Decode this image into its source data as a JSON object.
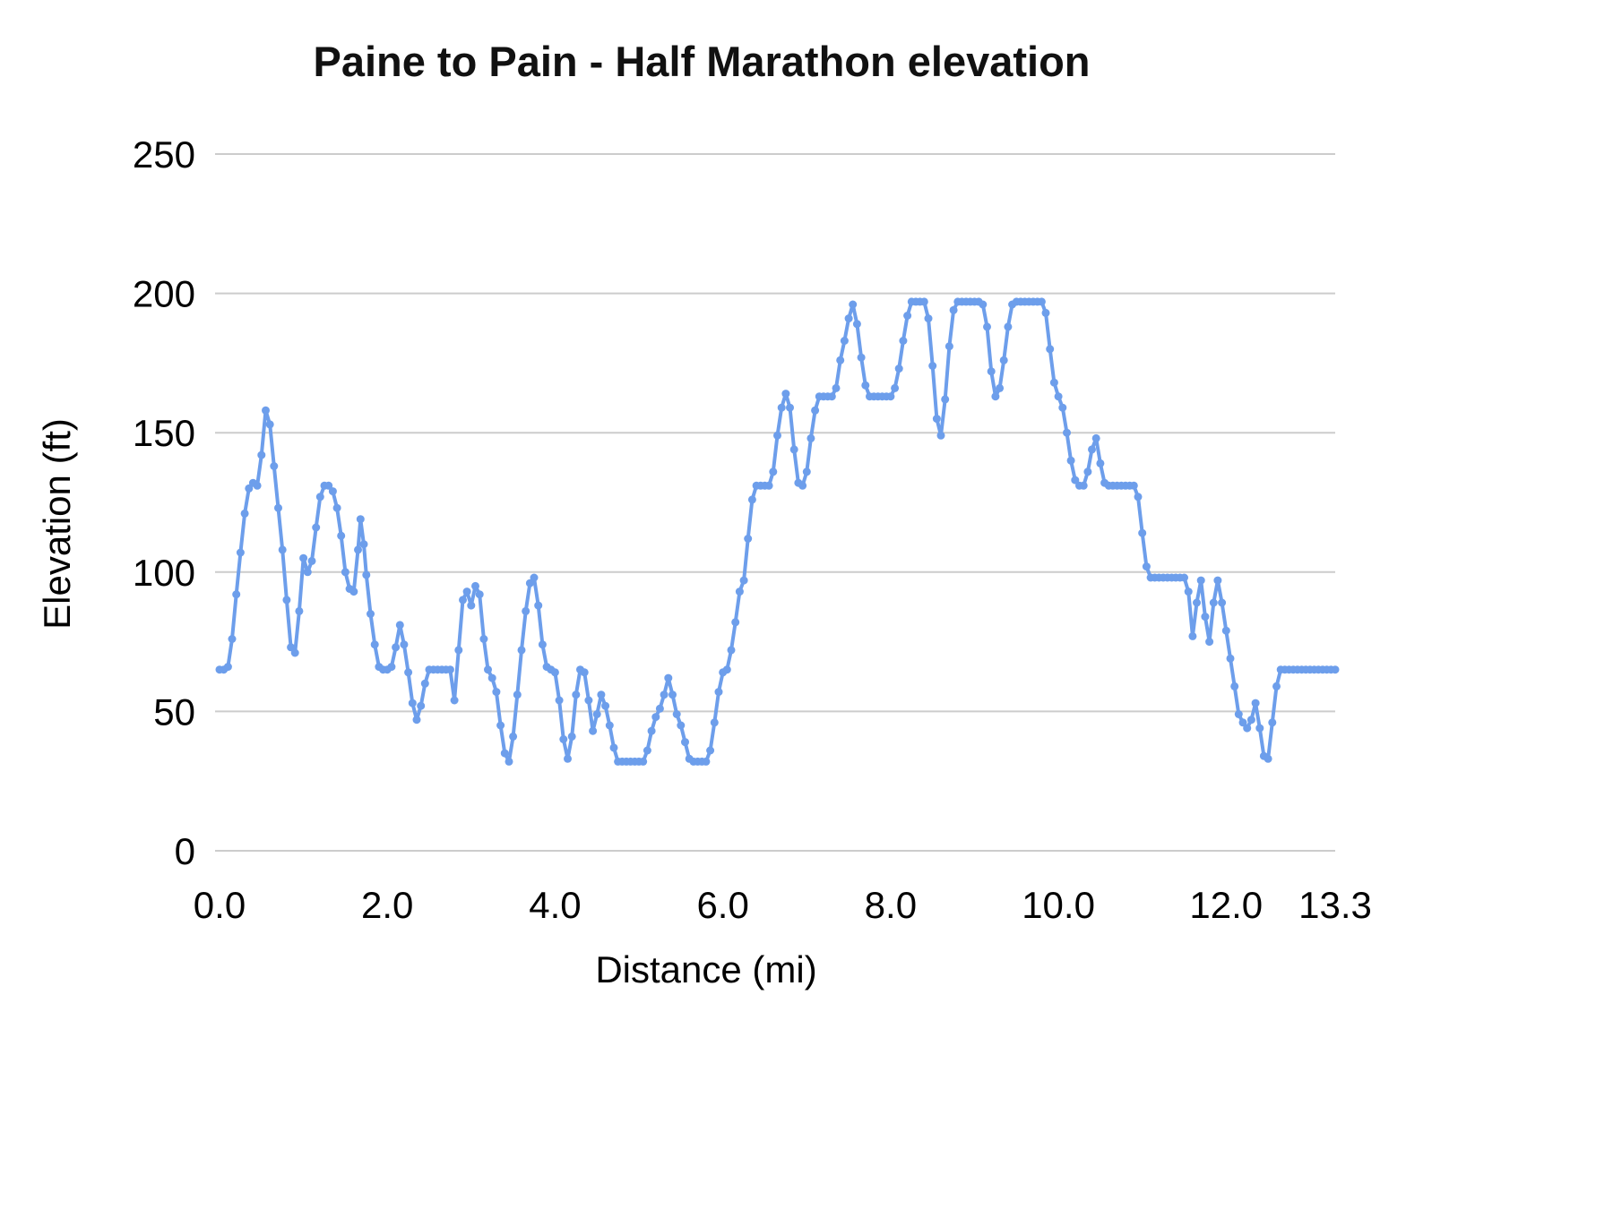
{
  "chart_data": {
    "type": "line",
    "title": "Paine to Pain - Half Marathon elevation",
    "xlabel": "Distance (mi)",
    "ylabel": "Elevation (ft)",
    "xlim": [
      0,
      13.3
    ],
    "ylim": [
      0,
      250
    ],
    "x_ticks": [
      {
        "value": 0.0,
        "label": "0.0"
      },
      {
        "value": 2.0,
        "label": "2.0"
      },
      {
        "value": 4.0,
        "label": "4.0"
      },
      {
        "value": 6.0,
        "label": "6.0"
      },
      {
        "value": 8.0,
        "label": "8.0"
      },
      {
        "value": 10.0,
        "label": "10.0"
      },
      {
        "value": 12.0,
        "label": "12.0"
      },
      {
        "value": 13.3,
        "label": "13.3"
      }
    ],
    "y_ticks": [
      {
        "value": 0,
        "label": "0"
      },
      {
        "value": 50,
        "label": "50"
      },
      {
        "value": 100,
        "label": "100"
      },
      {
        "value": 150,
        "label": "150"
      },
      {
        "value": 200,
        "label": "200"
      },
      {
        "value": 250,
        "label": "250"
      }
    ],
    "grid": "horizontal",
    "grid_color": "#cccccc",
    "legend": "none",
    "line_color": "#6d9eeb",
    "marker": "circle",
    "series": [
      {
        "name": "Elevation",
        "points": [
          [
            0.0,
            65
          ],
          [
            0.05,
            65
          ],
          [
            0.1,
            66
          ],
          [
            0.15,
            76
          ],
          [
            0.2,
            92
          ],
          [
            0.25,
            107
          ],
          [
            0.3,
            121
          ],
          [
            0.35,
            130
          ],
          [
            0.4,
            132
          ],
          [
            0.45,
            131
          ],
          [
            0.5,
            142
          ],
          [
            0.55,
            158
          ],
          [
            0.6,
            153
          ],
          [
            0.65,
            138
          ],
          [
            0.7,
            123
          ],
          [
            0.75,
            108
          ],
          [
            0.8,
            90
          ],
          [
            0.85,
            73
          ],
          [
            0.9,
            71
          ],
          [
            0.95,
            86
          ],
          [
            1.0,
            105
          ],
          [
            1.05,
            100
          ],
          [
            1.1,
            104
          ],
          [
            1.15,
            116
          ],
          [
            1.2,
            127
          ],
          [
            1.25,
            131
          ],
          [
            1.3,
            131
          ],
          [
            1.35,
            129
          ],
          [
            1.4,
            123
          ],
          [
            1.45,
            113
          ],
          [
            1.5,
            100
          ],
          [
            1.55,
            94
          ],
          [
            1.6,
            93
          ],
          [
            1.65,
            108
          ],
          [
            1.68,
            119
          ],
          [
            1.72,
            110
          ],
          [
            1.75,
            99
          ],
          [
            1.8,
            85
          ],
          [
            1.85,
            74
          ],
          [
            1.9,
            66
          ],
          [
            1.95,
            65
          ],
          [
            2.0,
            65
          ],
          [
            2.05,
            66
          ],
          [
            2.1,
            73
          ],
          [
            2.15,
            81
          ],
          [
            2.2,
            74
          ],
          [
            2.25,
            64
          ],
          [
            2.3,
            53
          ],
          [
            2.35,
            47
          ],
          [
            2.4,
            52
          ],
          [
            2.45,
            60
          ],
          [
            2.5,
            65
          ],
          [
            2.55,
            65
          ],
          [
            2.6,
            65
          ],
          [
            2.65,
            65
          ],
          [
            2.7,
            65
          ],
          [
            2.75,
            65
          ],
          [
            2.8,
            54
          ],
          [
            2.85,
            72
          ],
          [
            2.9,
            90
          ],
          [
            2.95,
            93
          ],
          [
            3.0,
            88
          ],
          [
            3.05,
            95
          ],
          [
            3.1,
            92
          ],
          [
            3.15,
            76
          ],
          [
            3.2,
            65
          ],
          [
            3.25,
            62
          ],
          [
            3.3,
            57
          ],
          [
            3.35,
            45
          ],
          [
            3.4,
            35
          ],
          [
            3.45,
            32
          ],
          [
            3.5,
            41
          ],
          [
            3.55,
            56
          ],
          [
            3.6,
            72
          ],
          [
            3.65,
            86
          ],
          [
            3.7,
            96
          ],
          [
            3.75,
            98
          ],
          [
            3.8,
            88
          ],
          [
            3.85,
            74
          ],
          [
            3.9,
            66
          ],
          [
            3.95,
            65
          ],
          [
            4.0,
            64
          ],
          [
            4.05,
            54
          ],
          [
            4.1,
            40
          ],
          [
            4.15,
            33
          ],
          [
            4.2,
            41
          ],
          [
            4.25,
            56
          ],
          [
            4.3,
            65
          ],
          [
            4.35,
            64
          ],
          [
            4.4,
            54
          ],
          [
            4.45,
            43
          ],
          [
            4.5,
            49
          ],
          [
            4.55,
            56
          ],
          [
            4.6,
            52
          ],
          [
            4.65,
            45
          ],
          [
            4.7,
            37
          ],
          [
            4.75,
            32
          ],
          [
            4.8,
            32
          ],
          [
            4.85,
            32
          ],
          [
            4.9,
            32
          ],
          [
            4.95,
            32
          ],
          [
            5.0,
            32
          ],
          [
            5.05,
            32
          ],
          [
            5.1,
            36
          ],
          [
            5.15,
            43
          ],
          [
            5.2,
            48
          ],
          [
            5.25,
            51
          ],
          [
            5.3,
            56
          ],
          [
            5.35,
            62
          ],
          [
            5.4,
            56
          ],
          [
            5.45,
            49
          ],
          [
            5.5,
            45
          ],
          [
            5.55,
            39
          ],
          [
            5.6,
            33
          ],
          [
            5.65,
            32
          ],
          [
            5.7,
            32
          ],
          [
            5.75,
            32
          ],
          [
            5.8,
            32
          ],
          [
            5.85,
            36
          ],
          [
            5.9,
            46
          ],
          [
            5.95,
            57
          ],
          [
            6.0,
            64
          ],
          [
            6.05,
            65
          ],
          [
            6.1,
            72
          ],
          [
            6.15,
            82
          ],
          [
            6.2,
            93
          ],
          [
            6.25,
            97
          ],
          [
            6.3,
            112
          ],
          [
            6.35,
            126
          ],
          [
            6.4,
            131
          ],
          [
            6.45,
            131
          ],
          [
            6.5,
            131
          ],
          [
            6.55,
            131
          ],
          [
            6.6,
            136
          ],
          [
            6.65,
            149
          ],
          [
            6.7,
            159
          ],
          [
            6.75,
            164
          ],
          [
            6.8,
            159
          ],
          [
            6.85,
            144
          ],
          [
            6.9,
            132
          ],
          [
            6.95,
            131
          ],
          [
            7.0,
            136
          ],
          [
            7.05,
            148
          ],
          [
            7.1,
            158
          ],
          [
            7.15,
            163
          ],
          [
            7.2,
            163
          ],
          [
            7.25,
            163
          ],
          [
            7.3,
            163
          ],
          [
            7.35,
            166
          ],
          [
            7.4,
            176
          ],
          [
            7.45,
            183
          ],
          [
            7.5,
            191
          ],
          [
            7.55,
            196
          ],
          [
            7.6,
            189
          ],
          [
            7.65,
            177
          ],
          [
            7.7,
            167
          ],
          [
            7.75,
            163
          ],
          [
            7.8,
            163
          ],
          [
            7.85,
            163
          ],
          [
            7.9,
            163
          ],
          [
            7.95,
            163
          ],
          [
            8.0,
            163
          ],
          [
            8.05,
            166
          ],
          [
            8.1,
            173
          ],
          [
            8.15,
            183
          ],
          [
            8.2,
            192
          ],
          [
            8.25,
            197
          ],
          [
            8.3,
            197
          ],
          [
            8.35,
            197
          ],
          [
            8.4,
            197
          ],
          [
            8.45,
            191
          ],
          [
            8.5,
            174
          ],
          [
            8.55,
            155
          ],
          [
            8.6,
            149
          ],
          [
            8.65,
            162
          ],
          [
            8.7,
            181
          ],
          [
            8.75,
            194
          ],
          [
            8.8,
            197
          ],
          [
            8.85,
            197
          ],
          [
            8.9,
            197
          ],
          [
            8.95,
            197
          ],
          [
            9.0,
            197
          ],
          [
            9.05,
            197
          ],
          [
            9.1,
            196
          ],
          [
            9.15,
            188
          ],
          [
            9.2,
            172
          ],
          [
            9.25,
            163
          ],
          [
            9.3,
            166
          ],
          [
            9.35,
            176
          ],
          [
            9.4,
            188
          ],
          [
            9.45,
            196
          ],
          [
            9.5,
            197
          ],
          [
            9.55,
            197
          ],
          [
            9.6,
            197
          ],
          [
            9.65,
            197
          ],
          [
            9.7,
            197
          ],
          [
            9.75,
            197
          ],
          [
            9.8,
            197
          ],
          [
            9.85,
            193
          ],
          [
            9.9,
            180
          ],
          [
            9.95,
            168
          ],
          [
            10.0,
            163
          ],
          [
            10.05,
            159
          ],
          [
            10.1,
            150
          ],
          [
            10.15,
            140
          ],
          [
            10.2,
            133
          ],
          [
            10.25,
            131
          ],
          [
            10.3,
            131
          ],
          [
            10.35,
            136
          ],
          [
            10.4,
            144
          ],
          [
            10.45,
            148
          ],
          [
            10.5,
            139
          ],
          [
            10.55,
            132
          ],
          [
            10.6,
            131
          ],
          [
            10.65,
            131
          ],
          [
            10.7,
            131
          ],
          [
            10.75,
            131
          ],
          [
            10.8,
            131
          ],
          [
            10.85,
            131
          ],
          [
            10.9,
            131
          ],
          [
            10.95,
            127
          ],
          [
            11.0,
            114
          ],
          [
            11.05,
            102
          ],
          [
            11.1,
            98
          ],
          [
            11.15,
            98
          ],
          [
            11.2,
            98
          ],
          [
            11.25,
            98
          ],
          [
            11.3,
            98
          ],
          [
            11.35,
            98
          ],
          [
            11.4,
            98
          ],
          [
            11.45,
            98
          ],
          [
            11.5,
            98
          ],
          [
            11.55,
            93
          ],
          [
            11.6,
            77
          ],
          [
            11.65,
            89
          ],
          [
            11.7,
            97
          ],
          [
            11.75,
            84
          ],
          [
            11.8,
            75
          ],
          [
            11.85,
            89
          ],
          [
            11.9,
            97
          ],
          [
            11.95,
            89
          ],
          [
            12.0,
            79
          ],
          [
            12.05,
            69
          ],
          [
            12.1,
            59
          ],
          [
            12.15,
            49
          ],
          [
            12.2,
            46
          ],
          [
            12.25,
            44
          ],
          [
            12.3,
            47
          ],
          [
            12.35,
            53
          ],
          [
            12.4,
            44
          ],
          [
            12.45,
            34
          ],
          [
            12.5,
            33
          ],
          [
            12.55,
            46
          ],
          [
            12.6,
            59
          ],
          [
            12.65,
            65
          ],
          [
            12.7,
            65
          ],
          [
            12.75,
            65
          ],
          [
            12.8,
            65
          ],
          [
            12.85,
            65
          ],
          [
            12.9,
            65
          ],
          [
            12.95,
            65
          ],
          [
            13.0,
            65
          ],
          [
            13.05,
            65
          ],
          [
            13.1,
            65
          ],
          [
            13.15,
            65
          ],
          [
            13.2,
            65
          ],
          [
            13.25,
            65
          ],
          [
            13.3,
            65
          ]
        ]
      }
    ]
  }
}
